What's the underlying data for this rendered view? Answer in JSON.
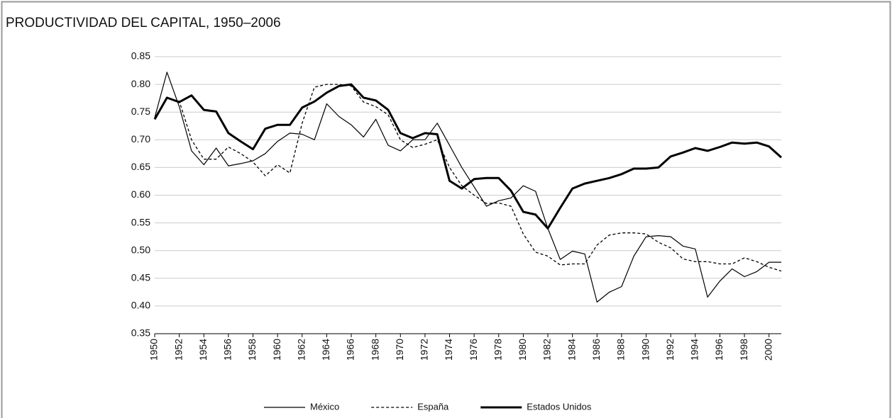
{
  "chart_data": {
    "type": "line",
    "title": "PRODUCTIVIDAD DEL CAPITAL, 1950–2006",
    "x": [
      1950,
      1951,
      1952,
      1953,
      1954,
      1955,
      1956,
      1957,
      1958,
      1959,
      1960,
      1961,
      1962,
      1963,
      1964,
      1965,
      1966,
      1967,
      1968,
      1969,
      1970,
      1971,
      1972,
      1973,
      1974,
      1975,
      1976,
      1977,
      1978,
      1979,
      1980,
      1981,
      1982,
      1983,
      1984,
      1985,
      1986,
      1987,
      1988,
      1989,
      1990,
      1991,
      1992,
      1993,
      1994,
      1995,
      1996,
      1997,
      1998,
      1999,
      2000,
      2001
    ],
    "series": [
      {
        "name": "México",
        "color": "#000000",
        "style": "thin",
        "values": [
          0.74,
          0.822,
          0.76,
          0.68,
          0.655,
          0.685,
          0.653,
          0.657,
          0.662,
          0.675,
          0.697,
          0.712,
          0.71,
          0.7,
          0.765,
          0.742,
          0.727,
          0.705,
          0.737,
          0.69,
          0.68,
          0.7,
          0.7,
          0.73,
          0.69,
          0.65,
          0.615,
          0.58,
          0.59,
          0.595,
          0.617,
          0.607,
          0.54,
          0.484,
          0.499,
          0.494,
          0.407,
          0.425,
          0.435,
          0.49,
          0.525,
          0.527,
          0.525,
          0.508,
          0.503,
          0.416,
          0.445,
          0.467,
          0.453,
          0.462,
          0.479,
          0.479
        ]
      },
      {
        "name": "España",
        "color": "#000000",
        "style": "dashed",
        "values": [
          0.74,
          0.775,
          0.77,
          0.7,
          0.665,
          0.665,
          0.687,
          0.675,
          0.66,
          0.635,
          0.655,
          0.64,
          0.73,
          0.795,
          0.8,
          0.8,
          0.797,
          0.768,
          0.76,
          0.745,
          0.7,
          0.686,
          0.692,
          0.7,
          0.65,
          0.617,
          0.6,
          0.585,
          0.586,
          0.58,
          0.53,
          0.497,
          0.49,
          0.474,
          0.476,
          0.476,
          0.51,
          0.528,
          0.532,
          0.532,
          0.53,
          0.515,
          0.505,
          0.485,
          0.48,
          0.48,
          0.476,
          0.476,
          0.487,
          0.48,
          0.47,
          0.463
        ]
      },
      {
        "name": "Estados Unidos",
        "color": "#000000",
        "style": "thick",
        "values": [
          0.737,
          0.776,
          0.768,
          0.78,
          0.754,
          0.751,
          0.712,
          0.697,
          0.683,
          0.72,
          0.727,
          0.727,
          0.758,
          0.769,
          0.785,
          0.797,
          0.8,
          0.776,
          0.771,
          0.754,
          0.712,
          0.703,
          0.712,
          0.71,
          0.626,
          0.612,
          0.629,
          0.631,
          0.631,
          0.608,
          0.57,
          0.565,
          0.54,
          0.577,
          0.612,
          0.621,
          0.626,
          0.631,
          0.638,
          0.648,
          0.648,
          0.65,
          0.67,
          0.677,
          0.685,
          0.68,
          0.687,
          0.695,
          0.693,
          0.695,
          0.688,
          0.668
        ]
      }
    ],
    "xlim": [
      1950,
      2001
    ],
    "xticks": [
      1950,
      1952,
      1954,
      1956,
      1958,
      1960,
      1962,
      1964,
      1966,
      1968,
      1970,
      1972,
      1974,
      1976,
      1978,
      1980,
      1982,
      1984,
      1986,
      1988,
      1990,
      1992,
      1994,
      1996,
      1998,
      2000
    ],
    "ylim": [
      0.35,
      0.85
    ],
    "yticks": [
      0.35,
      {
        "value": 0.4,
        "label": "0.40"
      },
      0.45,
      {
        "value": 0.5,
        "label": "0.50"
      },
      0.55,
      {
        "value": 0.6,
        "label": "0.60"
      },
      0.65,
      {
        "value": 0.7,
        "label": "0.70"
      },
      0.75,
      {
        "value": 0.8,
        "label": "0.80"
      },
      0.85
    ],
    "grid": true,
    "legend": "bottom"
  }
}
